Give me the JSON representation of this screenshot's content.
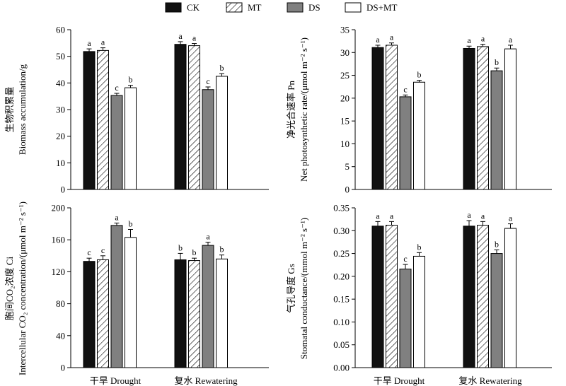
{
  "legend": [
    {
      "name": "CK",
      "fill": "black"
    },
    {
      "name": "MT",
      "fill": "hatch"
    },
    {
      "name": "DS",
      "fill": "gray"
    },
    {
      "name": "DS+MT",
      "fill": "white"
    }
  ],
  "colors": {
    "ck": "#111111",
    "ds": "#808080",
    "mt": "#ffffff",
    "dsmt": "#ffffff",
    "axis": "#000000"
  },
  "chart_data": [
    {
      "type": "bar",
      "categories": [
        "干旱 Drought",
        "复水 Rewatering"
      ],
      "ylabel_line1": "生物积累量",
      "ylabel_line2": "Biomass accumulation/g",
      "ylim": [
        0,
        60
      ],
      "yticks": [
        0,
        10,
        20,
        30,
        40,
        50,
        60
      ],
      "tick_decimals": 0,
      "series": [
        {
          "name": "CK",
          "values": [
            51.8,
            54.5
          ],
          "errors": [
            1.0,
            1.0
          ],
          "letters": [
            "a",
            "a"
          ]
        },
        {
          "name": "MT",
          "values": [
            52.2,
            54.0
          ],
          "errors": [
            1.0,
            0.8
          ],
          "letters": [
            "a",
            "a"
          ]
        },
        {
          "name": "DS",
          "values": [
            35.3,
            37.5
          ],
          "errors": [
            0.8,
            1.0
          ],
          "letters": [
            "c",
            "c"
          ]
        },
        {
          "name": "DS+MT",
          "values": [
            38.2,
            42.5
          ],
          "errors": [
            0.9,
            1.0
          ],
          "letters": [
            "b",
            "b"
          ]
        }
      ]
    },
    {
      "type": "bar",
      "categories": [
        "干旱 Drought",
        "复水 Rewatering"
      ],
      "ylabel_line1": "净光合速率 Pn",
      "ylabel_line2": "Net photosynthetic rate/(μmol m⁻² s⁻¹)",
      "ylim": [
        0,
        35
      ],
      "yticks": [
        0,
        5,
        10,
        15,
        20,
        25,
        30,
        35
      ],
      "tick_decimals": 0,
      "series": [
        {
          "name": "CK",
          "values": [
            31.1,
            30.9
          ],
          "errors": [
            0.5,
            0.5
          ],
          "letters": [
            "a",
            "a"
          ]
        },
        {
          "name": "MT",
          "values": [
            31.6,
            31.3
          ],
          "errors": [
            0.5,
            0.5
          ],
          "letters": [
            "a",
            "a"
          ]
        },
        {
          "name": "DS",
          "values": [
            20.3,
            26.0
          ],
          "errors": [
            0.4,
            0.6
          ],
          "letters": [
            "c",
            "b"
          ]
        },
        {
          "name": "DS+MT",
          "values": [
            23.5,
            30.8
          ],
          "errors": [
            0.4,
            0.8
          ],
          "letters": [
            "b",
            "a"
          ]
        }
      ]
    },
    {
      "type": "bar",
      "categories": [
        "干旱 Drought",
        "复水 Rewatering"
      ],
      "ylabel_line1": "胞间CO₂浓度 Ci",
      "ylabel_line2": "Intercellular CO₂ concentration/(μmol m⁻² s⁻¹)",
      "ylim": [
        0,
        200
      ],
      "yticks": [
        0,
        40,
        80,
        120,
        160,
        200
      ],
      "tick_decimals": 0,
      "series": [
        {
          "name": "CK",
          "values": [
            133,
            135
          ],
          "errors": [
            4,
            8
          ],
          "letters": [
            "c",
            "b"
          ]
        },
        {
          "name": "MT",
          "values": [
            135,
            134
          ],
          "errors": [
            5,
            3
          ],
          "letters": [
            "c",
            "b"
          ]
        },
        {
          "name": "DS",
          "values": [
            178,
            153
          ],
          "errors": [
            3,
            4
          ],
          "letters": [
            "a",
            "a"
          ]
        },
        {
          "name": "DS+MT",
          "values": [
            163,
            136
          ],
          "errors": [
            10,
            5
          ],
          "letters": [
            "b",
            "b"
          ]
        }
      ]
    },
    {
      "type": "bar",
      "categories": [
        "干旱 Drought",
        "复水 Rewatering"
      ],
      "ylabel_line1": "气孔导度 Gs",
      "ylabel_line2": "Stomatal conductance/(mmol m⁻² s⁻¹)",
      "ylim": [
        0,
        0.35
      ],
      "yticks": [
        0,
        0.05,
        0.1,
        0.15,
        0.2,
        0.25,
        0.3,
        0.35
      ],
      "tick_decimals": 2,
      "series": [
        {
          "name": "CK",
          "values": [
            0.31,
            0.31
          ],
          "errors": [
            0.01,
            0.012
          ],
          "letters": [
            "a",
            "a"
          ]
        },
        {
          "name": "MT",
          "values": [
            0.312,
            0.312
          ],
          "errors": [
            0.008,
            0.008
          ],
          "letters": [
            "a",
            "a"
          ]
        },
        {
          "name": "DS",
          "values": [
            0.216,
            0.25
          ],
          "errors": [
            0.01,
            0.008
          ],
          "letters": [
            "c",
            "b"
          ]
        },
        {
          "name": "DS+MT",
          "values": [
            0.244,
            0.305
          ],
          "errors": [
            0.008,
            0.01
          ],
          "letters": [
            "b",
            "a"
          ]
        }
      ]
    }
  ]
}
